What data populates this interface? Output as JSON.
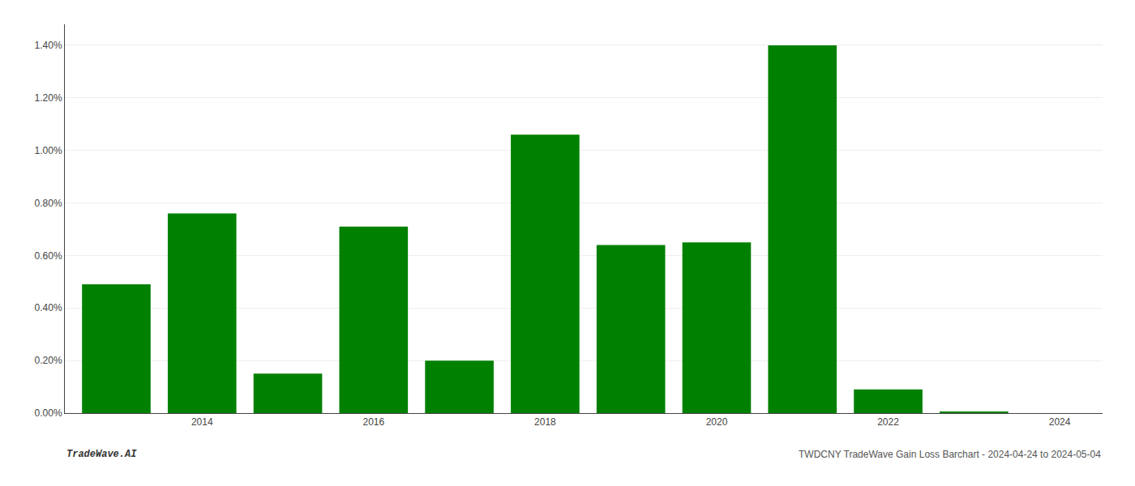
{
  "chart_data": {
    "type": "bar",
    "x": [
      2013,
      2014,
      2015,
      2016,
      2017,
      2018,
      2019,
      2020,
      2021,
      2022,
      2023
    ],
    "values": [
      0.0049,
      0.0076,
      0.0015,
      0.0071,
      0.002,
      0.0106,
      0.0064,
      0.0065,
      0.014,
      0.0009,
      5e-05
    ],
    "color": "#008000",
    "xlim": [
      2012.4,
      2024.5
    ],
    "xticks": [
      2014,
      2016,
      2018,
      2020,
      2022,
      2024
    ],
    "ylim": [
      0.0,
      0.0148
    ],
    "yticks": [
      {
        "value": 0.0,
        "label": "0.00%"
      },
      {
        "value": 0.002,
        "label": "0.20%"
      },
      {
        "value": 0.004,
        "label": "0.40%"
      },
      {
        "value": 0.006,
        "label": "0.60%"
      },
      {
        "value": 0.008,
        "label": "0.80%"
      },
      {
        "value": 0.01,
        "label": "1.00%"
      },
      {
        "value": 0.012,
        "label": "1.20%"
      },
      {
        "value": 0.014,
        "label": "1.40%"
      }
    ],
    "grid": true,
    "annotations": [
      "TradeWave.AI",
      "TWDCNY TradeWave Gain Loss Barchart - 2024-04-24 to 2024-05-04"
    ]
  }
}
